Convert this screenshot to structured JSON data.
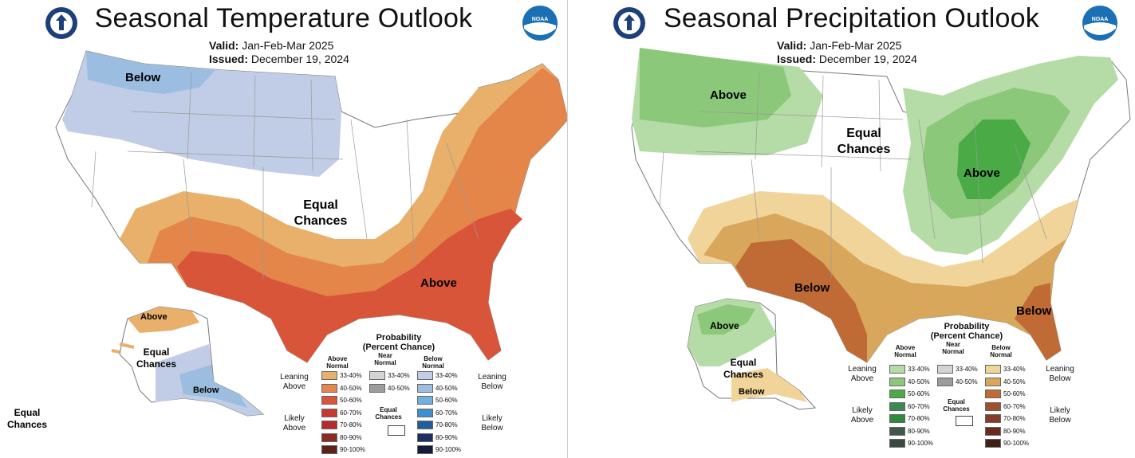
{
  "temperature": {
    "title": "Seasonal Temperature Outlook",
    "valid_label": "Valid:",
    "valid_value": "Jan-Feb-Mar 2025",
    "issued_label": "Issued:",
    "issued_value": "December 19, 2024",
    "labels": {
      "below": "Below",
      "equal_line1": "Equal",
      "equal_line2": "Chances",
      "above": "Above",
      "ak_above": "Above",
      "ak_equal_line1": "Equal",
      "ak_equal_line2": "Chances",
      "ak_below": "Below",
      "hi_equal_line1": "Equal",
      "hi_equal_line2": "Chances"
    },
    "colors": {
      "below_33_40": "#c1cde6",
      "below_40_50": "#9bbde0",
      "above_33_40": "#e8b06a",
      "above_40_50": "#e4854a",
      "above_50_60": "#d9553a"
    }
  },
  "precipitation": {
    "title": "Seasonal Precipitation Outlook",
    "valid_label": "Valid:",
    "valid_value": "Jan-Feb-Mar 2025",
    "issued_label": "Issued:",
    "issued_value": "December 19, 2024",
    "labels": {
      "above_nw": "Above",
      "equal_line1": "Equal",
      "equal_line2": "Chances",
      "above_gl": "Above",
      "below_sw": "Below",
      "below_fl": "Below",
      "ak_above": "Above",
      "ak_equal_line1": "Equal",
      "ak_equal_line2": "Chances",
      "ak_below": "Below"
    },
    "colors": {
      "above_33_40": "#b5dba6",
      "above_40_50": "#8bc87a",
      "above_50_60": "#4aab46",
      "below_33_40": "#f1d49a",
      "below_40_50": "#d9a75b",
      "below_50_60": "#c06a35"
    }
  },
  "legend_temp": {
    "title_line1": "Probability",
    "title_line2": "(Percent Chance)",
    "col_above_1": "Above",
    "col_above_2": "Normal",
    "col_near_1": "Near",
    "col_near_2": "Normal",
    "col_below_1": "Below",
    "col_below_2": "Normal",
    "leaning_above_1": "Leaning",
    "leaning_above_2": "Above",
    "likely_above_1": "Likely",
    "likely_above_2": "Above",
    "leaning_below_1": "Leaning",
    "leaning_below_2": "Below",
    "likely_below_1": "Likely",
    "likely_below_2": "Below",
    "equal_1": "Equal",
    "equal_2": "Chances",
    "above_bins": [
      "33-40%",
      "40-50%",
      "50-60%",
      "60-70%",
      "70-80%",
      "80-90%",
      "90-100%"
    ],
    "above_colors": [
      "#e8b06a",
      "#e4854a",
      "#d9553a",
      "#c93a2e",
      "#b72a2a",
      "#8e2a1e",
      "#5e2018"
    ],
    "near_bins": [
      "33-40%",
      "40-50%"
    ],
    "near_colors": [
      "#d4d4d4",
      "#9c9c9c"
    ],
    "below_bins": [
      "33-40%",
      "40-50%",
      "50-60%",
      "60-70%",
      "70-80%",
      "80-90%",
      "90-100%"
    ],
    "below_colors": [
      "#c1cde6",
      "#9bbde0",
      "#6fb0e0",
      "#3d8fd0",
      "#1f5f9e",
      "#1a2f66",
      "#111b3a"
    ]
  },
  "legend_precip": {
    "title_line1": "Probability",
    "title_line2": "(Percent Chance)",
    "col_above_1": "Above",
    "col_above_2": "Normal",
    "col_near_1": "Near",
    "col_near_2": "Normal",
    "col_below_1": "Below",
    "col_below_2": "Normal",
    "leaning_above_1": "Leaning",
    "leaning_above_2": "Above",
    "likely_above_1": "Likely",
    "likely_above_2": "Above",
    "leaning_below_1": "Leaning",
    "leaning_below_2": "Below",
    "likely_below_1": "Likely",
    "likely_below_2": "Below",
    "equal_1": "Equal",
    "equal_2": "Chances",
    "above_bins": [
      "33-40%",
      "40-50%",
      "50-60%",
      "60-70%",
      "70-80%",
      "80-90%",
      "90-100%"
    ],
    "above_colors": [
      "#b5dba6",
      "#8bc87a",
      "#4aab46",
      "#3b8a52",
      "#2e8b3a",
      "#3f5a4a",
      "#3a4a42"
    ],
    "near_bins": [
      "33-40%",
      "40-50%"
    ],
    "near_colors": [
      "#d4d4d4",
      "#9c9c9c"
    ],
    "below_bins": [
      "33-40%",
      "40-50%",
      "50-60%",
      "60-70%",
      "70-80%",
      "80-90%",
      "90-100%"
    ],
    "below_colors": [
      "#f1d49a",
      "#d9a75b",
      "#c06a35",
      "#a24f2f",
      "#8a3a28",
      "#6a2a1f",
      "#3e2018"
    ]
  },
  "logos": {
    "doc_seal": "department-of-commerce-seal",
    "noaa_logo": "noaa-logo",
    "noaa_text": "NOAA"
  }
}
